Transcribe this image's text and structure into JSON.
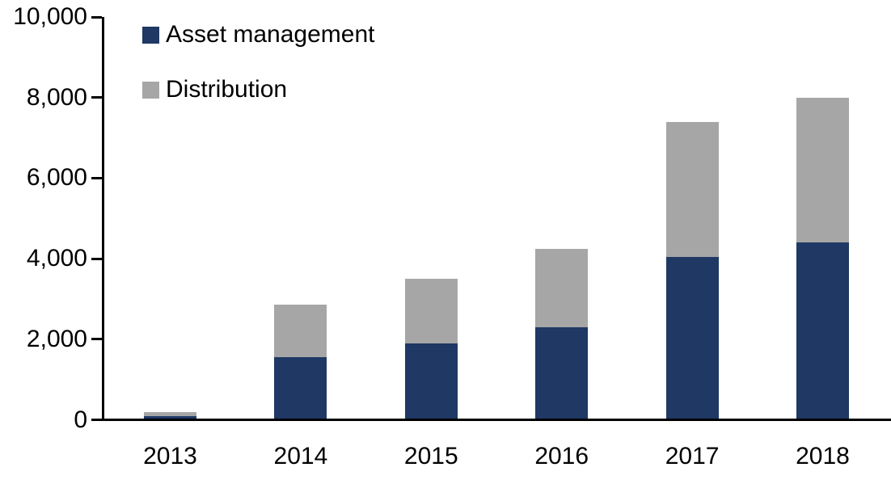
{
  "chart_data": {
    "type": "bar",
    "stacked": true,
    "title": "",
    "xlabel": "",
    "ylabel": "",
    "categories": [
      "2013",
      "2014",
      "2015",
      "2016",
      "2017",
      "2018"
    ],
    "series": [
      {
        "name": "Asset management",
        "color": "#1F3864",
        "values": [
          100,
          1550,
          1900,
          2300,
          4050,
          4400
        ]
      },
      {
        "name": "Distribution",
        "color": "#A6A6A6",
        "values": [
          100,
          1300,
          1600,
          1950,
          3350,
          3600
        ]
      }
    ],
    "totals": [
      200,
      2850,
      3500,
      4250,
      7400,
      8000
    ],
    "ylim": [
      0,
      10000
    ],
    "ytick_step": 2000,
    "ytick_values": [
      0,
      2000,
      4000,
      6000,
      8000,
      10000
    ],
    "ytick_labels": [
      "0",
      "2,000",
      "4,000",
      "6,000",
      "8,000",
      "10,000"
    ],
    "grid": false,
    "legend_position": "top-left"
  },
  "colors": {
    "axis": "#000000",
    "text": "#000000",
    "background": "#FFFFFF",
    "asset_management": "#1F3864",
    "distribution": "#A6A6A6"
  }
}
